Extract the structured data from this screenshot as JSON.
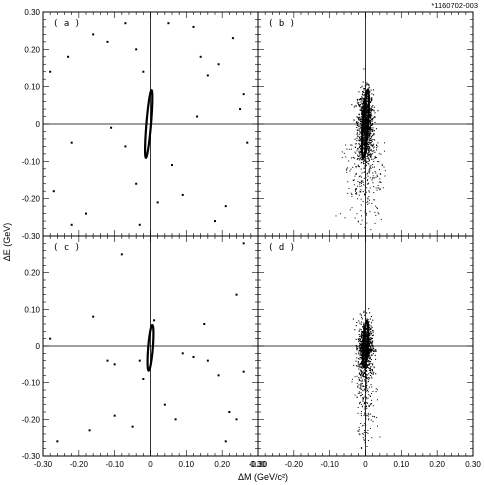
{
  "figure_id": "*1160702-003",
  "chart_data": {
    "type": "scatter",
    "layout": "2x2 grid of panels sharing axes",
    "xlabel": "ΔM (GeV/c²)",
    "ylabel": "ΔE (GeV)",
    "xlim": [
      -0.3,
      0.3
    ],
    "ylim": [
      -0.3,
      0.3
    ],
    "x_ticks": [
      "-0.30",
      "-0.20",
      "-0.10",
      "0",
      "0.10",
      "0.20",
      "0.30"
    ],
    "y_ticks": [
      "-0.30",
      "-0.20",
      "-0.10",
      "0",
      "0.10",
      "0.20",
      "0.30"
    ],
    "grid": false,
    "panels": [
      {
        "label": "( a )",
        "description_style": "sparse scatter with signal ellipse",
        "ellipse": {
          "center": [
            -0.005,
            0.0
          ],
          "tilt_deg": 72,
          "semi_major": 0.095,
          "semi_minor": 0.022
        },
        "points": [
          [
            -0.28,
            0.14
          ],
          [
            -0.23,
            0.18
          ],
          [
            -0.16,
            0.24
          ],
          [
            -0.12,
            0.22
          ],
          [
            -0.07,
            0.27
          ],
          [
            -0.04,
            0.2
          ],
          [
            -0.02,
            0.14
          ],
          [
            0.05,
            0.27
          ],
          [
            0.12,
            0.26
          ],
          [
            0.16,
            0.13
          ],
          [
            0.19,
            0.16
          ],
          [
            0.23,
            0.23
          ],
          [
            -0.22,
            -0.05
          ],
          [
            -0.11,
            -0.01
          ],
          [
            0.13,
            0.02
          ],
          [
            0.26,
            0.08
          ],
          [
            0.25,
            0.04
          ],
          [
            -0.04,
            -0.16
          ],
          [
            0.02,
            -0.21
          ],
          [
            -0.18,
            -0.24
          ],
          [
            -0.22,
            -0.27
          ],
          [
            -0.03,
            -0.27
          ],
          [
            0.09,
            -0.19
          ],
          [
            0.21,
            -0.22
          ],
          [
            0.27,
            -0.05
          ],
          [
            -0.27,
            -0.18
          ],
          [
            -0.07,
            -0.06
          ],
          [
            0.18,
            -0.26
          ],
          [
            0.06,
            -0.11
          ],
          [
            0.14,
            0.18
          ]
        ]
      },
      {
        "label": "( b )",
        "description_style": "dense signal cluster with ellipse and broad tail",
        "ellipse": {
          "center": [
            0.0,
            0.0
          ],
          "tilt_deg": 75,
          "semi_major": 0.095,
          "semi_minor": 0.024
        },
        "cluster": {
          "center": [
            0.0,
            0.0
          ],
          "count": 900,
          "sigma_x": 0.011,
          "sigma_y": 0.045
        },
        "tail": {
          "count": 300,
          "x_range": [
            -0.06,
            0.05
          ],
          "y_range": [
            -0.29,
            -0.05
          ]
        }
      },
      {
        "label": "( c )",
        "description_style": "sparse scatter with signal ellipse",
        "ellipse": {
          "center": [
            0.0,
            -0.005
          ],
          "tilt_deg": 72,
          "semi_major": 0.065,
          "semi_minor": 0.022
        },
        "points": [
          [
            -0.28,
            0.02
          ],
          [
            -0.16,
            0.08
          ],
          [
            -0.08,
            0.25
          ],
          [
            0.01,
            0.07
          ],
          [
            0.15,
            0.06
          ],
          [
            0.24,
            0.14
          ],
          [
            0.26,
            0.28
          ],
          [
            -0.12,
            -0.04
          ],
          [
            -0.1,
            -0.05
          ],
          [
            -0.03,
            -0.04
          ],
          [
            -0.02,
            -0.09
          ],
          [
            0.09,
            -0.02
          ],
          [
            0.12,
            -0.03
          ],
          [
            0.16,
            -0.04
          ],
          [
            0.19,
            -0.08
          ],
          [
            0.26,
            -0.07
          ],
          [
            0.04,
            -0.16
          ],
          [
            -0.05,
            -0.22
          ],
          [
            -0.1,
            -0.19
          ],
          [
            -0.17,
            -0.23
          ],
          [
            -0.26,
            -0.26
          ],
          [
            0.07,
            -0.2
          ],
          [
            0.22,
            -0.18
          ],
          [
            0.24,
            -0.2
          ],
          [
            0.21,
            -0.26
          ]
        ]
      },
      {
        "label": "( d )",
        "description_style": "dense signal cluster with ellipse and narrow tail",
        "ellipse": {
          "center": [
            0.0,
            0.005
          ],
          "tilt_deg": 75,
          "semi_major": 0.065,
          "semi_minor": 0.022
        },
        "cluster": {
          "center": [
            0.0,
            0.0
          ],
          "count": 700,
          "sigma_x": 0.01,
          "sigma_y": 0.035
        },
        "tail": {
          "count": 260,
          "x_range": [
            -0.03,
            0.03
          ],
          "y_range": [
            -0.29,
            -0.05
          ]
        }
      }
    ]
  }
}
